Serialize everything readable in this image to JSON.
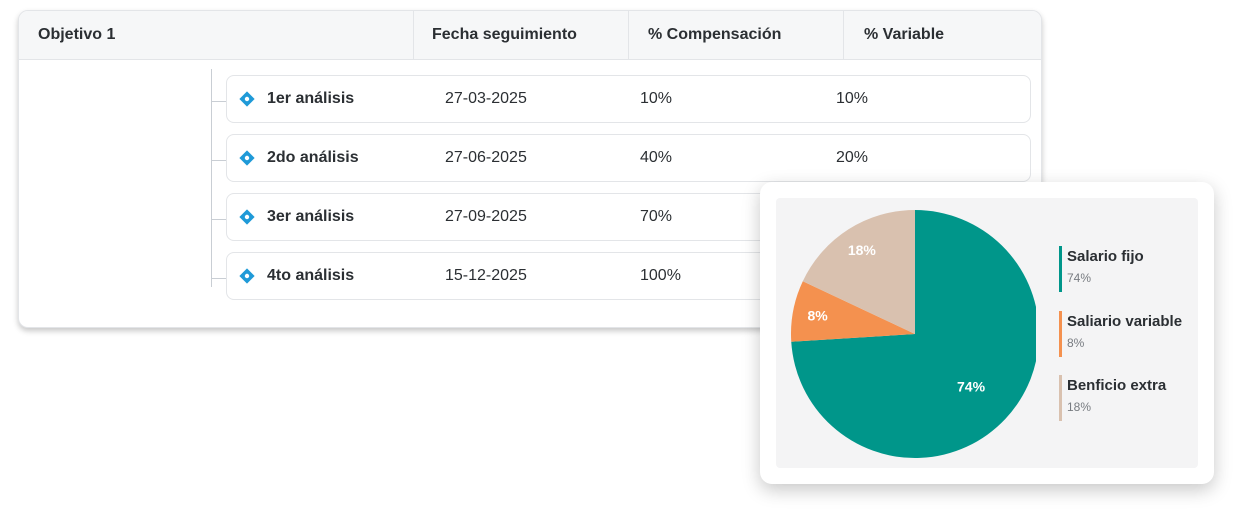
{
  "table": {
    "headers": {
      "objective": "Objetivo 1",
      "date": "Fecha seguimiento",
      "compensation": "% Compensación",
      "variable": "% Variable"
    },
    "rows": [
      {
        "name": "1er análisis",
        "date": "27-03-2025",
        "compensation": "10%",
        "variable": "10%"
      },
      {
        "name": "2do análisis",
        "date": "27-06-2025",
        "compensation": "40%",
        "variable": "20%"
      },
      {
        "name": "3er análisis",
        "date": "27-09-2025",
        "compensation": "70%",
        "variable": ""
      },
      {
        "name": "4to análisis",
        "date": "15-12-2025",
        "compensation": "100%",
        "variable": ""
      }
    ]
  },
  "colors": {
    "diamond": "#1f9ad8",
    "teal": "#00968a",
    "orange": "#f4914f",
    "beige": "#d9c1af"
  },
  "chart_data": {
    "type": "pie",
    "categories": [
      "Salario fijo",
      "Saliario variable",
      "Benficio extra"
    ],
    "values": [
      74,
      8,
      18
    ],
    "slice_labels": [
      "74%",
      "8%",
      "18%"
    ],
    "legend_values": [
      "74%",
      "8%",
      "18%"
    ],
    "colors": [
      "#00968a",
      "#f4914f",
      "#d9c1af"
    ],
    "legend_position": "right"
  }
}
